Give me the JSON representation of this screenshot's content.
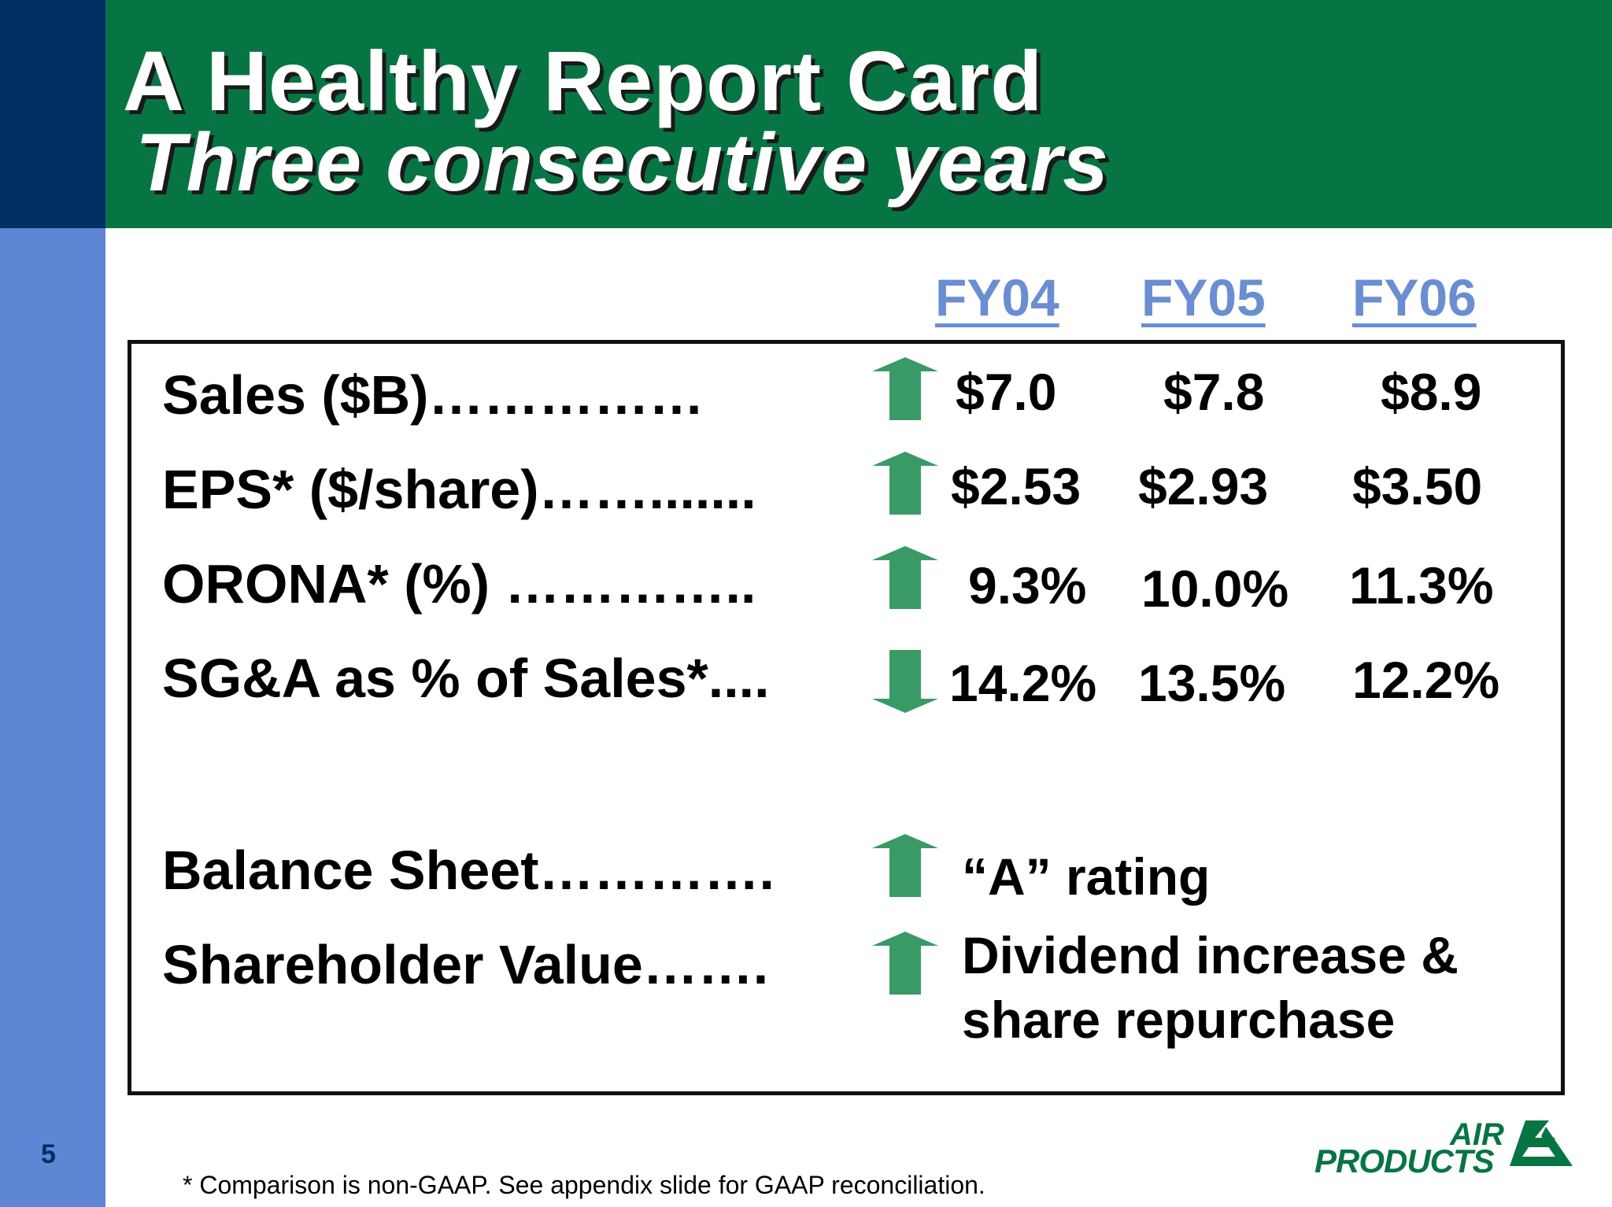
{
  "header": {
    "title": "A Healthy Report Card",
    "subtitle": "Three consecutive years"
  },
  "columns": [
    "FY04",
    "FY05",
    "FY06"
  ],
  "rows": [
    {
      "label": "Sales ($B)……………",
      "trend": "up",
      "values": [
        "$7.0",
        "$7.8",
        "$8.9"
      ]
    },
    {
      "label": "EPS* ($/share)…….......",
      "trend": "up",
      "values": [
        "$2.53",
        "$2.93",
        "$3.50"
      ]
    },
    {
      "label": "ORONA* (%) …………..",
      "trend": "up",
      "values": [
        "9.3%",
        "10.0%",
        "11.3%"
      ]
    },
    {
      "label": "SG&A as % of Sales*....",
      "trend": "down",
      "values": [
        "14.2%",
        "13.5%",
        "12.2%"
      ]
    }
  ],
  "qualitative": [
    {
      "label": "Balance Sheet………….",
      "trend": "up",
      "text": "“A” rating"
    },
    {
      "label": "Shareholder Value…….",
      "trend": "up",
      "text_line1": "Dividend increase &",
      "text_line2": "share repurchase"
    }
  ],
  "arrow_color": "#3a9a66",
  "footnote": "* Comparison is non-GAAP.  See appendix slide for GAAP reconciliation.",
  "page_number": "5",
  "logo": {
    "line1": "AIR",
    "line2": "PRODUCTS"
  }
}
